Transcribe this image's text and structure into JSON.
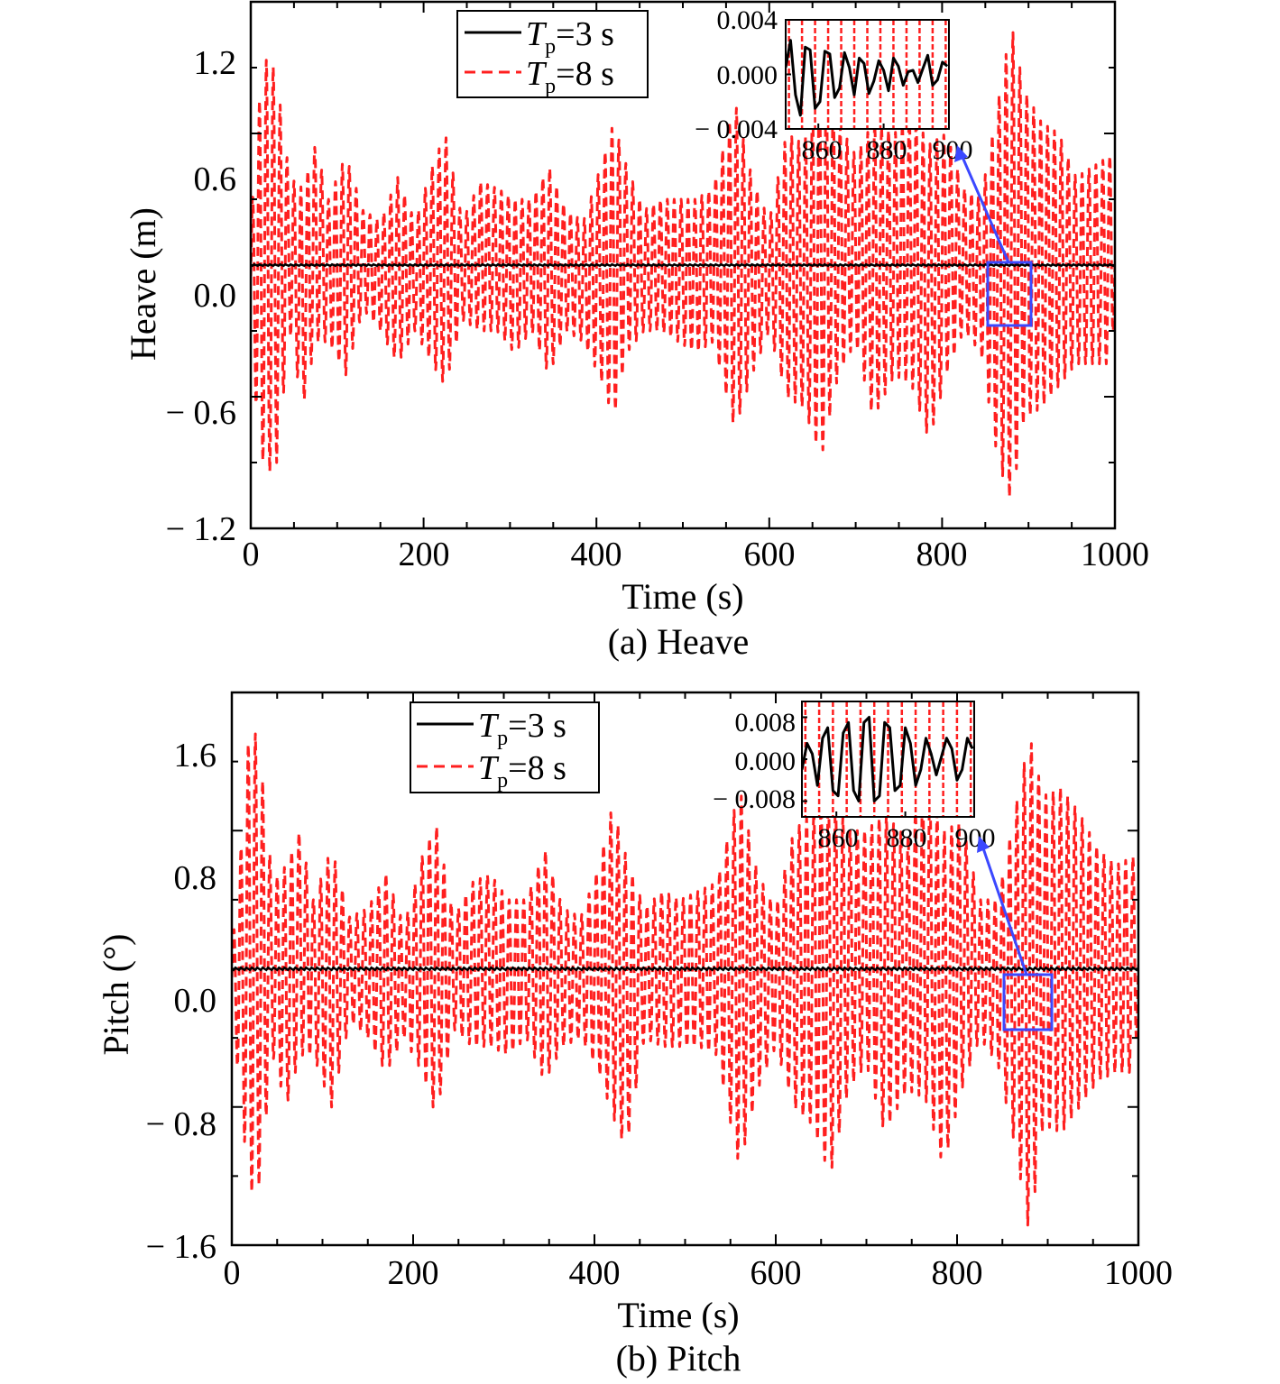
{
  "colors": {
    "series_tp3": "#000000",
    "series_tp8": "#ff1f1f",
    "zoom_box": "#3b48ff",
    "axis": "#000000",
    "background": "#ffffff"
  },
  "chart_data": [
    {
      "type": "line",
      "caption": "(a) Heave",
      "xlabel": "Time (s)",
      "ylabel": "Heave (m)",
      "xlim": [
        0,
        1000
      ],
      "ylim": [
        -1.2,
        1.2
      ],
      "xticks": [
        "0",
        "200",
        "400",
        "600",
        "800",
        "1000"
      ],
      "yticks": [
        "− 1.2",
        "− 0.6",
        "0.0",
        "0.6",
        "1.2"
      ],
      "ytick_values": [
        -1.2,
        -0.6,
        0.0,
        0.6,
        1.2
      ],
      "grid": false,
      "legend_position": "top-center",
      "legend": [
        {
          "symbol": "T",
          "subscript": "p",
          "label_rest": "=3 s",
          "style": "solid",
          "series": "Tp3"
        },
        {
          "symbol": "T",
          "subscript": "p",
          "label_rest": "=8 s",
          "style": "dashed",
          "series": "Tp8"
        }
      ],
      "envelope": {
        "note": "approximate upper/lower extents of the dashed Tp=8 s trace, read from the axes",
        "t": [
          0,
          10,
          20,
          30,
          45,
          60,
          75,
          90,
          110,
          130,
          150,
          170,
          190,
          210,
          225,
          245,
          265,
          285,
          305,
          325,
          345,
          365,
          385,
          405,
          420,
          435,
          455,
          475,
          495,
          515,
          535,
          560,
          580,
          600,
          620,
          640,
          660,
          680,
          700,
          720,
          745,
          765,
          785,
          805,
          825,
          845,
          865,
          880,
          895,
          915,
          935,
          955,
          975,
          995,
          1000
        ],
        "upper": [
          0.2,
          0.75,
          0.98,
          0.85,
          0.4,
          0.35,
          0.55,
          0.3,
          0.5,
          0.25,
          0.2,
          0.4,
          0.2,
          0.45,
          0.6,
          0.2,
          0.38,
          0.35,
          0.3,
          0.3,
          0.45,
          0.25,
          0.2,
          0.45,
          0.65,
          0.45,
          0.25,
          0.3,
          0.3,
          0.3,
          0.35,
          0.75,
          0.4,
          0.2,
          0.6,
          0.55,
          0.9,
          0.65,
          0.5,
          0.65,
          0.6,
          0.7,
          0.55,
          0.6,
          0.35,
          0.3,
          0.75,
          1.1,
          0.8,
          0.65,
          0.6,
          0.4,
          0.45,
          0.5,
          0.2
        ],
        "lower": [
          -0.3,
          -0.85,
          -0.95,
          -0.9,
          -0.3,
          -0.65,
          -0.35,
          -0.35,
          -0.5,
          -0.2,
          -0.3,
          -0.45,
          -0.3,
          -0.45,
          -0.55,
          -0.25,
          -0.3,
          -0.3,
          -0.4,
          -0.3,
          -0.5,
          -0.3,
          -0.35,
          -0.52,
          -0.7,
          -0.4,
          -0.3,
          -0.3,
          -0.35,
          -0.4,
          -0.35,
          -0.75,
          -0.5,
          -0.3,
          -0.6,
          -0.65,
          -0.88,
          -0.5,
          -0.35,
          -0.7,
          -0.5,
          -0.55,
          -0.8,
          -0.5,
          -0.3,
          -0.4,
          -0.9,
          -1.08,
          -0.7,
          -0.65,
          -0.55,
          -0.45,
          -0.45,
          -0.45,
          -0.2
        ]
      },
      "series": [
        {
          "name": "Tp=3 s",
          "style": "solid",
          "description": "near-zero trace",
          "amplitude": 0.004
        },
        {
          "name": "Tp=8 s",
          "style": "dashed",
          "period_s": 8
        }
      ],
      "zoom_region": {
        "x": [
          855,
          900
        ],
        "y": [
          -0.15,
          0.15
        ]
      },
      "inset": {
        "xlim": [
          850,
          900
        ],
        "ylim": [
          -0.004,
          0.004
        ],
        "xticks": [
          "860",
          "880",
          "900"
        ],
        "xtick_values": [
          860,
          880,
          900
        ],
        "yticks": [
          "− 0.004",
          "0.000",
          "0.004"
        ],
        "ytick_values": [
          -0.004,
          0.0,
          0.004
        ],
        "tp3_points": {
          "t": [
            850,
            851.5,
            853,
            854.5,
            856,
            857.5,
            859,
            860.5,
            862,
            863.5,
            865,
            866.5,
            868,
            869.5,
            871,
            872.5,
            874,
            875.5,
            877,
            878.5,
            880,
            881.5,
            883,
            884.5,
            886,
            887.5,
            889,
            890.5,
            892,
            893.5,
            895,
            896.5,
            898,
            899.5
          ],
          "y": [
            0.0005,
            0.0025,
            -0.0015,
            -0.003,
            0.002,
            0.0018,
            -0.0025,
            -0.002,
            0.0017,
            0.0015,
            -0.0017,
            -0.001,
            0.0016,
            0.0005,
            -0.0015,
            0.0012,
            0.0008,
            -0.0014,
            -0.0005,
            0.001,
            0.0003,
            -0.0012,
            0.0012,
            0.0006,
            -0.0008,
            0.0002,
            0.0003,
            -0.0006,
            0.0004,
            0.0014,
            -0.0008,
            -0.0004,
            0.0009,
            0.0006
          ]
        }
      }
    },
    {
      "type": "line",
      "caption": "(b) Pitch",
      "xlabel": "Time (s)",
      "ylabel": "Pitch (°)",
      "xlim": [
        0,
        1000
      ],
      "ylim": [
        -1.6,
        1.6
      ],
      "xticks": [
        "0",
        "200",
        "400",
        "600",
        "800",
        "1000"
      ],
      "yticks": [
        "− 1.6",
        "− 0.8",
        "0.0",
        "0.8",
        "1.6"
      ],
      "ytick_values": [
        -1.6,
        -0.8,
        0.0,
        0.8,
        1.6
      ],
      "grid": false,
      "legend_position": "top-center",
      "legend": [
        {
          "symbol": "T",
          "subscript": "p",
          "label_rest": "=3 s",
          "style": "solid",
          "series": "Tp3"
        },
        {
          "symbol": "T",
          "subscript": "p",
          "label_rest": "=8 s",
          "style": "dashed",
          "series": "Tp8"
        }
      ],
      "envelope": {
        "note": "approximate upper/lower extents of the dashed Tp=8 s trace, read from the axes",
        "t": [
          0,
          10,
          20,
          30,
          45,
          60,
          75,
          90,
          110,
          130,
          150,
          170,
          190,
          210,
          225,
          245,
          265,
          285,
          305,
          325,
          345,
          365,
          385,
          405,
          420,
          435,
          455,
          475,
          495,
          515,
          535,
          560,
          580,
          600,
          620,
          640,
          660,
          680,
          700,
          720,
          745,
          765,
          785,
          805,
          825,
          845,
          865,
          880,
          895,
          915,
          935,
          955,
          975,
          995,
          1000
        ],
        "upper": [
          0.1,
          0.7,
          1.45,
          1.3,
          0.5,
          0.6,
          0.8,
          0.4,
          0.7,
          0.3,
          0.35,
          0.55,
          0.25,
          0.65,
          0.85,
          0.3,
          0.5,
          0.55,
          0.4,
          0.4,
          0.7,
          0.35,
          0.3,
          0.6,
          0.95,
          0.65,
          0.35,
          0.45,
          0.4,
          0.45,
          0.5,
          1.05,
          0.55,
          0.35,
          0.8,
          0.9,
          1.05,
          0.8,
          0.8,
          0.9,
          0.75,
          1.1,
          0.8,
          0.85,
          0.4,
          0.4,
          0.95,
          1.35,
          1.0,
          1.05,
          0.9,
          0.7,
          0.6,
          0.65,
          0.3
        ],
        "lower": [
          -0.2,
          -0.8,
          -1.3,
          -1.25,
          -0.5,
          -0.8,
          -0.5,
          -0.5,
          -0.8,
          -0.3,
          -0.4,
          -0.6,
          -0.4,
          -0.6,
          -0.85,
          -0.35,
          -0.45,
          -0.45,
          -0.5,
          -0.4,
          -0.65,
          -0.45,
          -0.4,
          -0.6,
          -0.85,
          -1.05,
          -0.4,
          -0.45,
          -0.45,
          -0.45,
          -0.5,
          -1.15,
          -0.7,
          -0.45,
          -0.8,
          -0.9,
          -1.2,
          -0.7,
          -0.55,
          -0.95,
          -0.7,
          -0.75,
          -1.15,
          -0.7,
          -0.4,
          -0.55,
          -1.05,
          -1.55,
          -0.9,
          -0.95,
          -0.8,
          -0.65,
          -0.6,
          -0.6,
          -0.25
        ]
      },
      "series": [
        {
          "name": "Tp=3 s",
          "style": "solid",
          "description": "near-zero trace",
          "amplitude": 0.008
        },
        {
          "name": "Tp=8 s",
          "style": "dashed",
          "period_s": 8
        }
      ],
      "zoom_region": {
        "x": [
          855,
          905
        ],
        "y": [
          -0.2,
          0.17
        ]
      },
      "inset": {
        "xlim": [
          850,
          900
        ],
        "ylim": [
          -0.011,
          0.011
        ],
        "xticks": [
          "860",
          "880",
          "900"
        ],
        "xtick_values": [
          860,
          880,
          900
        ],
        "yticks": [
          "− 0.008",
          "0.000",
          "0.008"
        ],
        "ytick_values": [
          -0.008,
          0.0,
          0.008
        ],
        "tp3_points": {
          "t": [
            850,
            851.5,
            853,
            854.5,
            856,
            857.5,
            859,
            860.5,
            862,
            863.5,
            865,
            866.5,
            868,
            869.5,
            871,
            872.5,
            874,
            875.5,
            877,
            878.5,
            880,
            881.5,
            883,
            884.5,
            886,
            887.5,
            889,
            890.5,
            892,
            893.5,
            895,
            896.5,
            898,
            899.5
          ],
          "y": [
            -0.002,
            0.003,
            0.001,
            -0.005,
            0.004,
            0.006,
            -0.006,
            -0.007,
            0.005,
            0.007,
            -0.006,
            -0.008,
            0.007,
            0.008,
            -0.008,
            -0.007,
            0.007,
            0.006,
            -0.006,
            -0.005,
            0.006,
            0.003,
            -0.005,
            -0.002,
            0.004,
            0.001,
            -0.003,
            0.0005,
            0.004,
            0.002,
            -0.004,
            -0.002,
            0.004,
            0.002
          ]
        }
      }
    }
  ]
}
